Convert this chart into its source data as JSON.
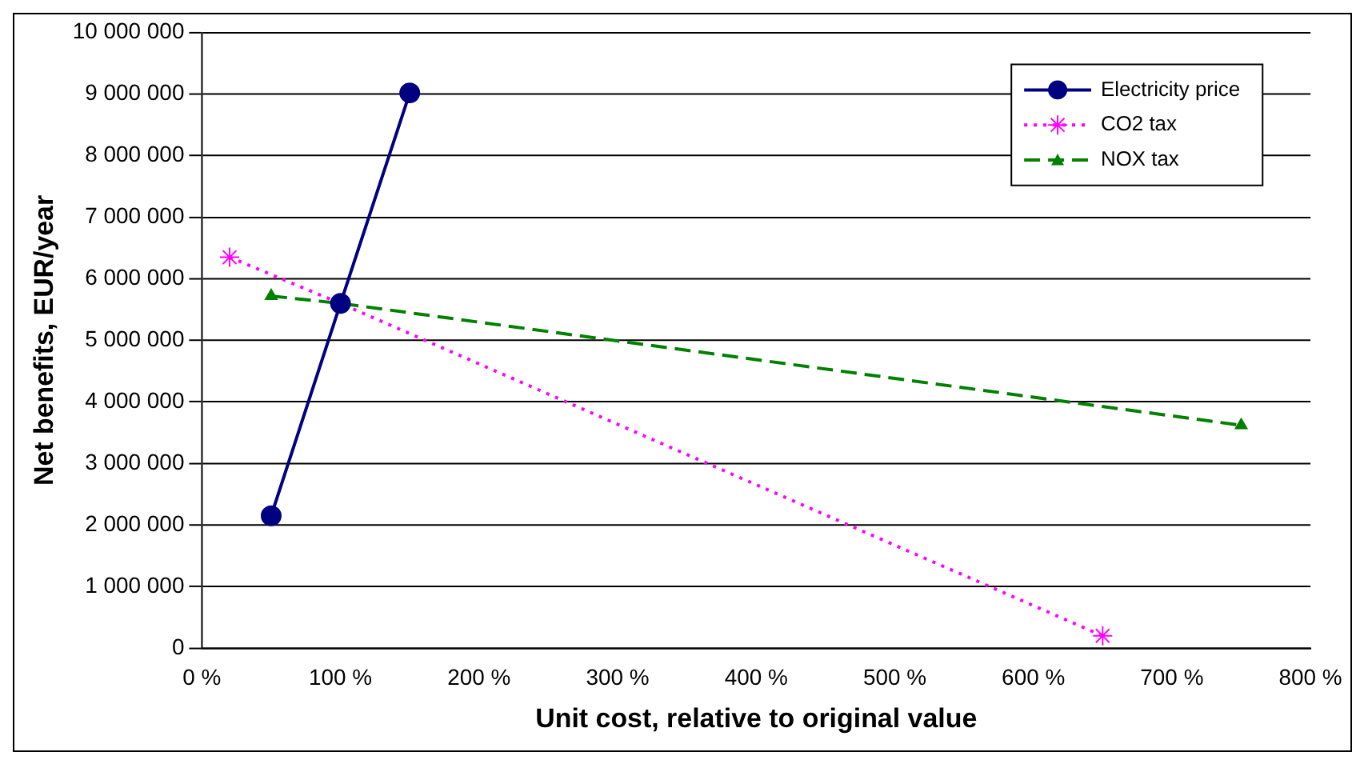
{
  "chart_data": {
    "type": "line",
    "xlabel": "Unit cost, relative to original value",
    "ylabel": "Net benefits, EUR/year",
    "xlim": [
      0,
      800
    ],
    "xticks": [
      {
        "value": 0,
        "label": "0 %"
      },
      {
        "value": 100,
        "label": "100 %"
      },
      {
        "value": 200,
        "label": "200 %"
      },
      {
        "value": 300,
        "label": "300 %"
      },
      {
        "value": 400,
        "label": "400 %"
      },
      {
        "value": 500,
        "label": "500 %"
      },
      {
        "value": 600,
        "label": "600 %"
      },
      {
        "value": 700,
        "label": "700 %"
      },
      {
        "value": 800,
        "label": "800 %"
      }
    ],
    "ylim": [
      0,
      10000000
    ],
    "yticks": [
      0,
      {
        "value": 1000000,
        "label": "1 000 000"
      },
      {
        "value": 2000000,
        "label": "2 000 000"
      },
      {
        "value": 3000000,
        "label": "3 000 000"
      },
      {
        "value": 4000000,
        "label": "4 000 000"
      },
      {
        "value": 5000000,
        "label": "5 000 000"
      },
      {
        "value": 6000000,
        "label": "6 000 000"
      },
      {
        "value": 7000000,
        "label": "7 000 000"
      },
      {
        "value": 8000000,
        "label": "8 000 000"
      },
      {
        "value": 9000000,
        "label": "9 000 000"
      },
      {
        "value": 10000000,
        "label": "10 000 000"
      }
    ],
    "grid": "y",
    "legend": "top right",
    "series": [
      {
        "name": "Electricity price",
        "color": "#000080",
        "x": [
          50,
          100,
          150
        ],
        "values": [
          2150000,
          5600000,
          9020000
        ],
        "marker": "circle",
        "line_style": "solid"
      },
      {
        "name": "CO2 tax",
        "color": "#ff00ff",
        "x": [
          20,
          100,
          650
        ],
        "values": [
          6350000,
          5600000,
          200000
        ],
        "marker": "cross",
        "line_style": "dotted"
      },
      {
        "name": "NOX tax",
        "color": "#008000",
        "x": [
          50,
          100,
          750
        ],
        "values": [
          5720000,
          5600000,
          3620000
        ],
        "marker": "triangle",
        "line_style": "dashed"
      }
    ]
  }
}
